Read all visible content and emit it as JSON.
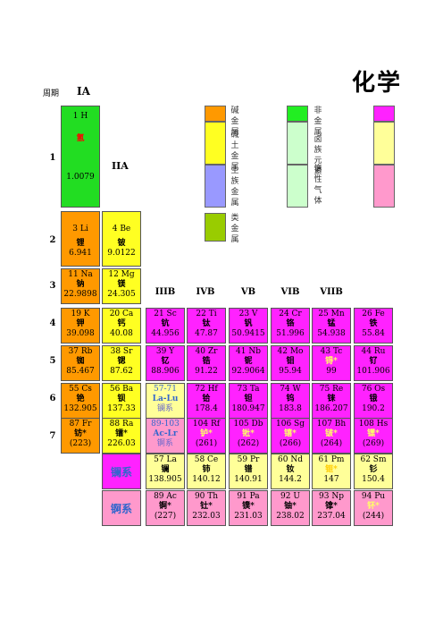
{
  "title": "化学",
  "period_label": "周期",
  "group_labels": {
    "ia": "IA",
    "iia": "IIA",
    "iiib": "IIIB",
    "ivb": "IVB",
    "vb": "VB",
    "vib": "VIB",
    "viib": "VIIB"
  },
  "periods": [
    "1",
    "2",
    "3",
    "4",
    "5",
    "6",
    "7"
  ],
  "legend": {
    "col1": "碱金属 碱土金属 主族金属 类金属",
    "alkali": "碱金属",
    "alkaline": "碱土金属",
    "main": "主族金属",
    "metalloid": "类金属",
    "col2": "非金属 卤族元素 惰性气体",
    "nonmetal": "非金属",
    "halogen": "卤族元素",
    "noble": "惰性气体",
    "colors": {
      "alkali": "#ff9900",
      "alkaline": "#ffff22",
      "main": "#9999ff",
      "metalloid": "#99cc00",
      "nonmetal": "#22ee22",
      "halogen": "#ccffcc",
      "noble_a": "#ff22ff",
      "noble_b": "#ffff99",
      "noble_c": "#ff99cc"
    }
  },
  "elements": {
    "H": {
      "sym": "1  H",
      "name": "氢",
      "mass": "1.0079"
    },
    "Li": {
      "sym": "3  Li",
      "name": "锂",
      "mass": "6.941"
    },
    "Be": {
      "sym": "4  Be",
      "name": "铍",
      "mass": "9.0122"
    },
    "Na": {
      "sym": "11  Na",
      "name": "钠",
      "mass": "22.9898"
    },
    "Mg": {
      "sym": "12 Mg",
      "name": "镁",
      "mass": "24.305"
    },
    "K": {
      "sym": "19  K",
      "name": "钾",
      "mass": "39.098"
    },
    "Ca": {
      "sym": "20 Ca",
      "name": "钙",
      "mass": "40.08"
    },
    "Sc": {
      "sym": "21 Sc",
      "name": "钪",
      "mass": "44.956"
    },
    "Ti": {
      "sym": "22 Ti",
      "name": "钛",
      "mass": "47.87"
    },
    "V": {
      "sym": "23 V",
      "name": "钒",
      "mass": "50.9415"
    },
    "Cr": {
      "sym": "24 Cr",
      "name": "铬",
      "mass": "51.996"
    },
    "Mn": {
      "sym": "25 Mn",
      "name": "锰",
      "mass": "54.938"
    },
    "Fe": {
      "sym": "26 Fe",
      "name": "铁",
      "mass": "55.84"
    },
    "Rb": {
      "sym": "37 Rb",
      "name": "铷",
      "mass": "85.467"
    },
    "Sr": {
      "sym": "38 Sr",
      "name": "锶",
      "mass": "87.62"
    },
    "Y": {
      "sym": "39 Y",
      "name": "钇",
      "mass": "88.906"
    },
    "Zr": {
      "sym": "40 Zr",
      "name": "锆",
      "mass": "91.22"
    },
    "Nb": {
      "sym": "41 Nb",
      "name": "铌",
      "mass": "92.9064"
    },
    "Mo": {
      "sym": "42 Mo",
      "name": "钼",
      "mass": "95.94"
    },
    "Tc": {
      "sym": "43 Tc",
      "name": "锝*",
      "mass": "99"
    },
    "Ru": {
      "sym": "44 Ru",
      "name": "钌",
      "mass": "101.906"
    },
    "Cs": {
      "sym": "55 Cs",
      "name": "铯",
      "mass": "132.905"
    },
    "Ba": {
      "sym": "56 Ba",
      "name": "钡",
      "mass": "137.33"
    },
    "LaLu": {
      "sym": "57-71",
      "name": "La-Lu",
      "mass": "镧系"
    },
    "Hf": {
      "sym": "72 Hf",
      "name": "铪",
      "mass": "178.4"
    },
    "Ta": {
      "sym": "73 Ta",
      "name": "钽",
      "mass": "180.947"
    },
    "W": {
      "sym": "74 W",
      "name": "钨",
      "mass": "183.8"
    },
    "Re": {
      "sym": "75 Re",
      "name": "铼",
      "mass": "186.207"
    },
    "Os": {
      "sym": "76 Os",
      "name": "锇",
      "mass": "190.2"
    },
    "Fr": {
      "sym": "87 Fr",
      "name": "钫*",
      "mass": "(223)"
    },
    "Ra": {
      "sym": "88 Ra",
      "name": "镭*",
      "mass": "226.03"
    },
    "AcLr": {
      "sym": "89-103",
      "name": "Ac-Lr",
      "mass": "锕系"
    },
    "Rf": {
      "sym": "104 Rf",
      "name": "𬬻*",
      "mass": "(261)"
    },
    "Db": {
      "sym": "105 Db",
      "name": "𬭊*",
      "mass": "(262)"
    },
    "Sg": {
      "sym": "106 Sg",
      "name": "𬭳*",
      "mass": "(266)"
    },
    "Bh": {
      "sym": "107 Bh",
      "name": "𬭛*",
      "mass": "(264)"
    },
    "Hs": {
      "sym": "108 Hs",
      "name": "𬭶*",
      "mass": "(269)"
    },
    "La": {
      "sym": "57 La",
      "name": "镧",
      "mass": "138.905"
    },
    "Ce": {
      "sym": "58 Ce",
      "name": "铈",
      "mass": "140.12"
    },
    "Pr": {
      "sym": "59 Pr",
      "name": "镨",
      "mass": "140.91"
    },
    "Nd": {
      "sym": "60 Nd",
      "name": "钕",
      "mass": "144.2"
    },
    "Pm": {
      "sym": "61 Pm",
      "name": "钷*",
      "mass": "147"
    },
    "Sm": {
      "sym": "62 Sm",
      "name": "钐",
      "mass": "150.4"
    },
    "Ac": {
      "sym": "89 Ac",
      "name": "锕*",
      "mass": "(227)"
    },
    "Th": {
      "sym": "90 Th",
      "name": "钍*",
      "mass": "232.03"
    },
    "Pa": {
      "sym": "91 Pa",
      "name": "镤*",
      "mass": "231.03"
    },
    "U": {
      "sym": "92 U",
      "name": "铀*",
      "mass": "238.02"
    },
    "Np": {
      "sym": "93 Np",
      "name": "镎*",
      "mass": "237.04"
    },
    "Pu": {
      "sym": "94 Pu",
      "name": "钚*",
      "mass": "(244)"
    }
  },
  "series": {
    "lanthanide": "镧系",
    "actinide": "锕系"
  }
}
